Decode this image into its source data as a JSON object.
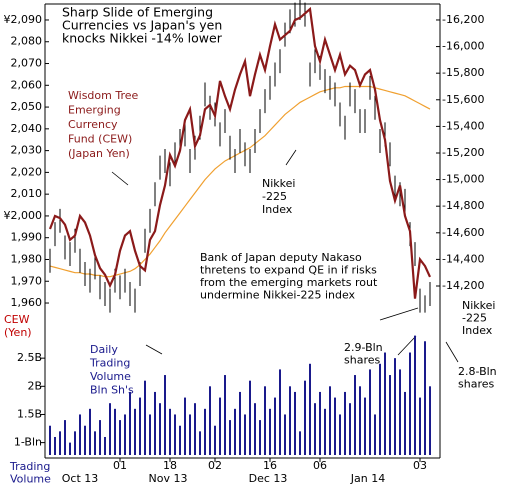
{
  "chart_data": {
    "type": "financial",
    "annotations": [
      {
        "lines": [
          "Sharp Slide of Emerging",
          "Currencies vs Japan's yen",
          "knocks Nikkei -14% lower"
        ],
        "color": "#000000"
      },
      {
        "lines": [
          "Wisdom Tree",
          "Emerging",
          "Currency",
          "Fund (CEW)",
          "(Japan Yen)"
        ],
        "color": "#8b1a1a"
      },
      {
        "lines": [
          "Nikkei",
          "-225",
          "Index"
        ],
        "color": "#000000"
      },
      {
        "lines": [
          "Bank of Japan deputy Nakaso",
          "thretens to expand QE in if risks",
          "from the emerging markets rout",
          "undermine Nikkei-225 index"
        ],
        "color": "#000000"
      },
      {
        "lines": [
          "Nikkei",
          "-225",
          "Index"
        ],
        "color": "#000000"
      },
      {
        "lines": [
          "CEW",
          "(Yen)"
        ],
        "color": "#c00000"
      },
      {
        "lines": [
          "Daily",
          "Trading",
          "Volume",
          "Bln Sh's"
        ],
        "color": "#1a1a8c"
      },
      {
        "lines": [
          "2.9-Bln",
          "shares"
        ],
        "color": "#000000"
      },
      {
        "lines": [
          "2.8-Bln",
          "shares"
        ],
        "color": "#000000"
      },
      {
        "lines": [
          "Trading",
          "Volume"
        ],
        "color": "#1a1a8c"
      }
    ],
    "categories": [
      null,
      null,
      null,
      null,
      null,
      null,
      null,
      null,
      null,
      null,
      null,
      null,
      null,
      null,
      "01",
      null,
      null,
      null,
      null,
      null,
      null,
      null,
      null,
      null,
      "18",
      null,
      null,
      null,
      null,
      null,
      null,
      null,
      null,
      "02",
      null,
      null,
      null,
      null,
      null,
      null,
      null,
      null,
      null,
      null,
      "16",
      null,
      null,
      null,
      null,
      null,
      null,
      null,
      null,
      null,
      "06",
      null,
      null,
      null,
      null,
      null,
      null,
      null,
      null,
      null,
      null,
      null,
      null,
      null,
      null,
      null,
      null,
      null,
      null,
      null,
      "03",
      null,
      null
    ],
    "month_labels": [
      "Oct 13",
      "Nov 13",
      "Dec 13",
      "Jan 14"
    ],
    "ylim": [
      1954.5,
      2095.5
    ],
    "yticks": [
      {
        "value": 2090,
        "label": "¥2,090"
      },
      {
        "value": 2080,
        "label": "2,080"
      },
      {
        "value": 2070,
        "label": "2,070"
      },
      {
        "value": 2060,
        "label": "2,060"
      },
      {
        "value": 2050,
        "label": "2,050"
      },
      {
        "value": 2040,
        "label": "2,040"
      },
      {
        "value": 2030,
        "label": "2,030"
      },
      {
        "value": 2020,
        "label": "2,020"
      },
      {
        "value": 2010,
        "label": "2,010"
      },
      {
        "value": 2000,
        "label": "¥2,000"
      },
      {
        "value": 1990,
        "label": "1,990"
      },
      {
        "value": 1980,
        "label": "1,980"
      },
      {
        "value": 1970,
        "label": "1,970"
      },
      {
        "value": 1960,
        "label": "1,960"
      }
    ],
    "y2lim": [
      13982,
      16290
    ],
    "y2ticks": [
      {
        "value": 16200,
        "label": "-16,200"
      },
      {
        "value": 16000,
        "label": "-16,000"
      },
      {
        "value": 15800,
        "label": "-15,800"
      },
      {
        "value": 15600,
        "label": "-15,600"
      },
      {
        "value": 15400,
        "label": "-15,400"
      },
      {
        "value": 15200,
        "label": "-15,200"
      },
      {
        "value": 15000,
        "label": "-15,000"
      },
      {
        "value": 14800,
        "label": "-14,800"
      },
      {
        "value": 14600,
        "label": "-14,600"
      },
      {
        "value": 14400,
        "label": "-14,400"
      },
      {
        "value": 14200,
        "label": "-14,200"
      }
    ],
    "volume_ylim": [
      0.78,
      3.0
    ],
    "volume_yticks": [
      {
        "value": 1,
        "label": "1-Bln"
      },
      {
        "value": 1.5,
        "label": "1.5B"
      },
      {
        "value": 2,
        "label": "2B"
      },
      {
        "value": 2.5,
        "label": "2.5B"
      }
    ],
    "series": [
      {
        "kind": "line",
        "color": "#8b1a1a",
        "values": [
          1994,
          2000,
          1999,
          1996,
          1989,
          1991,
          2000,
          1997,
          1991,
          1982,
          1976,
          1973,
          1968,
          1973,
          1984,
          1991,
          1993,
          1984,
          1977,
          1975,
          1989,
          1993,
          2005,
          2014,
          2028,
          2023,
          2030,
          2044,
          2049,
          2032,
          2037,
          2049,
          2051,
          2046,
          2062,
          2055,
          2049,
          2058,
          2065,
          2071,
          2055,
          2065,
          2074,
          2067,
          2078,
          2088,
          2081,
          2083,
          2085,
          2090,
          2091,
          2093,
          2095,
          2078,
          2071,
          2081,
          2074,
          2067,
          2074,
          2065,
          2069,
          2067,
          2060,
          2065,
          2067,
          2058,
          2044,
          2035,
          2016,
          2007,
          2014,
          2000,
          1993,
          1962,
          1980,
          1977,
          1972
        ]
      },
      {
        "kind": "range",
        "axis": "y2",
        "color": "#000000",
        "high": [
          14480,
          14680,
          14780,
          14580,
          14530,
          14630,
          14480,
          14380,
          14330,
          14430,
          14280,
          14230,
          14180,
          14330,
          14280,
          14330,
          14230,
          14180,
          14380,
          14630,
          14780,
          14980,
          15180,
          15230,
          15130,
          15280,
          15380,
          15430,
          15230,
          15330,
          15480,
          15730,
          15630,
          15580,
          15430,
          15530,
          15330,
          15230,
          15380,
          15280,
          15230,
          15380,
          15530,
          15680,
          15780,
          15880,
          15980,
          16180,
          16280,
          16330,
          16380,
          16330,
          15880,
          15980,
          15930,
          15830,
          15780,
          15730,
          15580,
          15480,
          15730,
          15680,
          15530,
          15530,
          15780,
          15630,
          15380,
          15430,
          15280,
          15030,
          14980,
          14930,
          14680,
          14530,
          14180,
          14130,
          14230
        ],
        "low": [
          14300,
          14500,
          14600,
          14400,
          14350,
          14450,
          14300,
          14200,
          14150,
          14250,
          14100,
          14050,
          14000,
          14150,
          14100,
          14150,
          14050,
          14000,
          14200,
          14450,
          14600,
          14800,
          15000,
          15050,
          14950,
          15100,
          15200,
          15250,
          15050,
          15150,
          15300,
          15550,
          15450,
          15400,
          15250,
          15350,
          15150,
          15050,
          15200,
          15100,
          15050,
          15200,
          15350,
          15500,
          15600,
          15700,
          15800,
          16000,
          16100,
          16150,
          16200,
          16150,
          15700,
          15800,
          15750,
          15650,
          15600,
          15550,
          15400,
          15300,
          15550,
          15500,
          15350,
          15350,
          15600,
          15450,
          15200,
          15250,
          15100,
          14850,
          14800,
          14750,
          14500,
          14350,
          14000,
          14000,
          14050
        ]
      },
      {
        "kind": "line",
        "axis": "y2",
        "color": "#f0a030",
        "values": [
          14350,
          14340,
          14330,
          14320,
          14310,
          14300,
          14300,
          14290,
          14290,
          14280,
          14280,
          14270,
          14270,
          14280,
          14290,
          14300,
          14310,
          14330,
          14360,
          14400,
          14440,
          14490,
          14540,
          14600,
          14650,
          14700,
          14750,
          14800,
          14850,
          14900,
          14950,
          15000,
          15040,
          15080,
          15110,
          15140,
          15160,
          15180,
          15200,
          15220,
          15240,
          15270,
          15300,
          15330,
          15370,
          15410,
          15450,
          15490,
          15520,
          15550,
          15580,
          15600,
          15620,
          15640,
          15660,
          15670,
          15680,
          15690,
          15690,
          15700,
          15700,
          15700,
          15700,
          15700,
          15700,
          15690,
          15680,
          15670,
          15660,
          15650,
          15640,
          15630,
          15610,
          15590,
          15570,
          15550,
          15530
        ]
      },
      {
        "kind": "volume",
        "color": "#1a1a8c",
        "values": [
          1.3,
          1.1,
          1.2,
          1.4,
          1.0,
          1.2,
          1.5,
          1.3,
          1.6,
          1.2,
          1.4,
          1.1,
          1.7,
          1.6,
          1.4,
          1.5,
          1.9,
          1.6,
          1.8,
          2.1,
          1.5,
          1.9,
          1.7,
          2.2,
          1.6,
          1.5,
          1.3,
          1.8,
          1.5,
          1.7,
          1.2,
          1.6,
          2.0,
          1.3,
          1.8,
          2.2,
          1.4,
          1.6,
          1.9,
          1.5,
          2.1,
          1.7,
          1.4,
          2.0,
          1.6,
          1.8,
          2.3,
          1.5,
          2.0,
          1.9,
          1.2,
          2.1,
          2.4,
          1.7,
          1.9,
          1.6,
          2.0,
          1.8,
          1.5,
          1.9,
          1.7,
          2.2,
          2.0,
          1.8,
          2.3,
          1.5,
          2.4,
          2.6,
          2.2,
          2.5,
          2.3,
          1.9,
          2.6,
          2.9,
          1.8,
          2.8,
          2.0
        ]
      }
    ]
  }
}
